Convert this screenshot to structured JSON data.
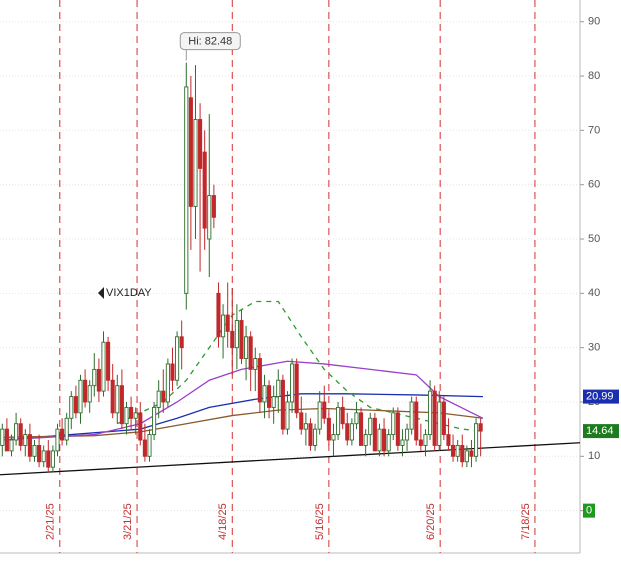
{
  "chart_data": {
    "type": "candlestick",
    "symbol": "VIX1DAY",
    "annotation": "Hi: 82.48",
    "xlim": [
      -0.5,
      125.6
    ],
    "xticks": [
      {
        "value": 12.5,
        "label": "2/21/25"
      },
      {
        "value": 29.3,
        "label": "3/21/25"
      },
      {
        "value": 50,
        "label": "4/18/25"
      },
      {
        "value": 71,
        "label": "5/16/25"
      },
      {
        "value": 95.2,
        "label": "6/20/25"
      },
      {
        "value": 115.8,
        "label": "7/18/25"
      }
    ],
    "ylim": [
      -7.8,
      94
    ],
    "yticks": [
      0,
      10,
      20,
      30,
      40,
      50,
      60,
      70,
      80,
      90
    ],
    "grid": true,
    "up_color": "#2d6e2d",
    "down_color": "#c0282b",
    "open": [
      12,
      15,
      11,
      13,
      16,
      12,
      14,
      10,
      12,
      9,
      11,
      8,
      11,
      15,
      13,
      17,
      21,
      18,
      24,
      20,
      23,
      26,
      22,
      31,
      24,
      18,
      23,
      16,
      19,
      17,
      18,
      13,
      10,
      14,
      19,
      22,
      20,
      27,
      24,
      32,
      40,
      76,
      56,
      72,
      66,
      50,
      58,
      40,
      32,
      36,
      33,
      30,
      35,
      28,
      32,
      26,
      28,
      20,
      23,
      19,
      21,
      24,
      15,
      20,
      27,
      18,
      15,
      16,
      12,
      15,
      20,
      17,
      13,
      14,
      19,
      16,
      13,
      16,
      18,
      12,
      14,
      17,
      11,
      15,
      11,
      14,
      18,
      12,
      13,
      15,
      20,
      13,
      12,
      14,
      22,
      12,
      20,
      14,
      12,
      10,
      12,
      9,
      11,
      10,
      16
    ],
    "high": [
      16,
      17,
      14,
      18,
      17,
      15,
      16,
      13,
      14,
      12,
      13,
      12,
      16,
      17,
      18,
      22,
      23,
      25,
      26,
      24,
      29,
      28,
      33,
      32,
      27,
      25,
      26,
      20,
      21,
      19,
      20,
      16,
      15,
      20,
      24,
      26,
      28,
      30,
      33,
      35,
      82.48,
      80,
      82,
      75,
      70,
      73,
      60,
      42,
      38,
      42,
      41,
      38,
      37,
      34,
      33,
      30,
      29,
      25,
      24,
      23,
      26,
      25,
      22,
      28,
      28,
      21,
      18,
      17,
      16,
      22,
      23,
      18,
      16,
      20,
      21,
      18,
      17,
      20,
      19,
      15,
      18,
      18,
      16,
      17,
      15,
      19,
      19,
      15,
      16,
      21,
      21,
      16,
      15,
      24,
      23,
      22,
      21,
      17,
      14,
      13,
      14,
      12,
      13,
      17,
      17
    ],
    "low": [
      10,
      11,
      10,
      12,
      11,
      10,
      9,
      9,
      8,
      8,
      7,
      7,
      10,
      12,
      12,
      15,
      17,
      16,
      19,
      18,
      21,
      20,
      21,
      22,
      17,
      16,
      15,
      14,
      15,
      14,
      12,
      9,
      9,
      13,
      17,
      18,
      19,
      22,
      23,
      26,
      37,
      48,
      50,
      44,
      48,
      43,
      52,
      30,
      28,
      30,
      25,
      26,
      27,
      24,
      22,
      22,
      18,
      17,
      17,
      16,
      18,
      14,
      14,
      18,
      17,
      14,
      12,
      11,
      11,
      14,
      16,
      12,
      10,
      13,
      15,
      12,
      12,
      15,
      12,
      10,
      12,
      11,
      10,
      10,
      10,
      13,
      11,
      10,
      11,
      14,
      12,
      11,
      10,
      13,
      11,
      11,
      13,
      11,
      9,
      9,
      8,
      8,
      8,
      9,
      10
    ],
    "close": [
      15,
      11,
      13,
      16,
      12,
      14,
      10,
      12,
      9,
      11,
      8,
      11,
      15,
      13,
      17,
      21,
      18,
      24,
      20,
      23,
      26,
      22,
      31,
      24,
      18,
      23,
      16,
      19,
      17,
      18,
      13,
      10,
      14,
      19,
      22,
      20,
      27,
      24,
      32,
      30,
      78,
      56,
      72,
      63,
      52,
      58,
      54,
      32,
      36,
      33,
      30,
      35,
      28,
      32,
      26,
      28,
      20,
      23,
      19,
      21,
      24,
      15,
      20,
      27,
      18,
      15,
      16,
      12,
      15,
      20,
      17,
      13,
      14,
      19,
      16,
      13,
      16,
      18,
      12,
      14,
      17,
      11,
      15,
      11,
      14,
      18,
      12,
      13,
      15,
      20,
      13,
      12,
      14,
      22,
      12,
      20,
      14,
      12,
      10,
      12,
      9,
      11,
      10,
      16,
      14.64
    ],
    "series": [
      {
        "color": "#1a2fb0",
        "style": "solid",
        "x": [
          0,
          15,
          30,
          38,
          45,
          55,
          65,
          75,
          90,
          104.5
        ],
        "values": [
          13,
          14,
          15,
          17,
          19,
          20.5,
          21.5,
          21.5,
          21.3,
          20.99
        ]
      },
      {
        "color": "#8a5a2b",
        "style": "solid",
        "x": [
          0,
          20,
          30,
          40,
          50,
          60,
          70,
          80,
          95,
          104.5
        ],
        "values": [
          13.5,
          13.8,
          14.5,
          16,
          17.5,
          18.5,
          18.8,
          18.5,
          18,
          17
        ]
      },
      {
        "color": "#9b3fc9",
        "style": "solid",
        "x": [
          0,
          20,
          30,
          38,
          45,
          52,
          62,
          70,
          80,
          90,
          95,
          104.5
        ],
        "values": [
          13,
          14,
          16,
          20,
          24,
          26,
          27.5,
          27,
          26,
          25,
          21,
          17
        ]
      },
      {
        "color": "#2f9a2f",
        "style": "dashed",
        "x": [
          25,
          35,
          40,
          45,
          50,
          55,
          60,
          65,
          70,
          75,
          80,
          90,
          100,
          104.5
        ],
        "values": [
          16,
          20,
          24,
          30,
          36,
          38.5,
          38.5,
          32,
          26,
          22,
          19,
          17,
          15,
          14.64
        ]
      },
      {
        "color": "#111111",
        "style": "solid",
        "x": [
          -0.5,
          125.6
        ],
        "values": [
          6.6,
          12.5
        ]
      }
    ],
    "zero_marker": 0
  }
}
